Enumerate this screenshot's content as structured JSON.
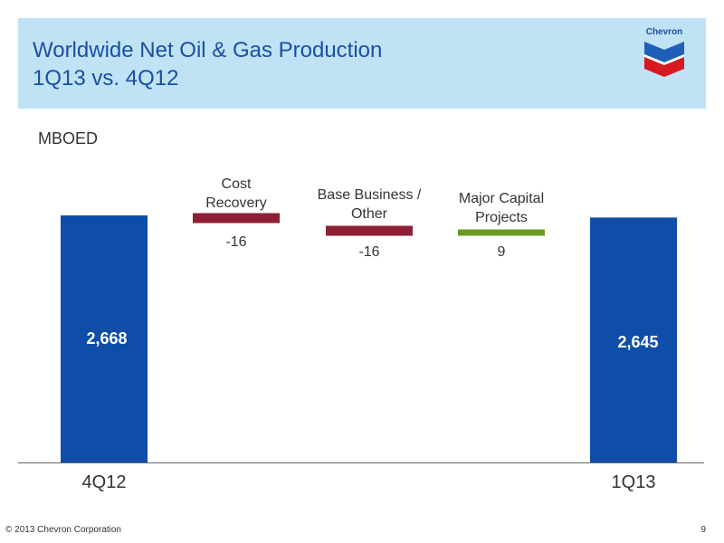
{
  "header": {
    "title_line1": "Worldwide Net Oil & Gas Production",
    "title_line2": "1Q13 vs. 4Q12",
    "logo_text": "Chevron",
    "logo_colors": {
      "blue": "#1f5fb8",
      "red": "#d71920"
    }
  },
  "unit_label": "MBOED",
  "footer": {
    "copyright": "© 2013 Chevron Corporation",
    "page_number": "9"
  },
  "colors": {
    "total": "#0f4ea8",
    "decrease": "#8e1f35",
    "increase": "#6b9b22",
    "axis": "#666666",
    "header_bg": "#bfe3f5"
  },
  "chart_data": {
    "type": "bar",
    "subtype": "waterfall",
    "categories": [
      "4Q12",
      "Cost\nRecovery",
      "Base Business /\nOther",
      "Major Capital\nProjects",
      "1Q13"
    ],
    "values": [
      2668,
      -16,
      -16,
      9,
      2645
    ],
    "value_labels": [
      "2,668",
      "-16",
      "-16",
      "9",
      "2,645"
    ],
    "kinds": [
      "total",
      "decrease",
      "decrease",
      "increase",
      "total"
    ],
    "ylabel": "MBOED"
  }
}
